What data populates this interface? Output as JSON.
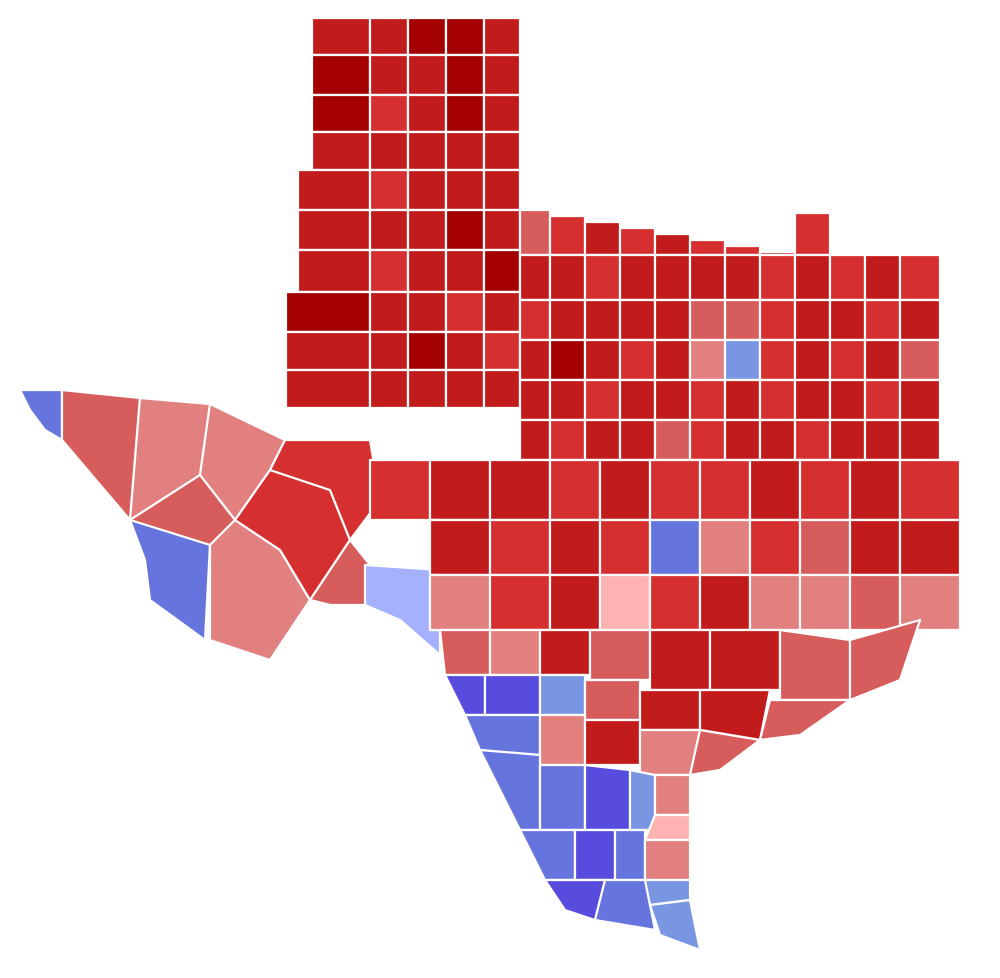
{
  "map": {
    "type": "choropleth",
    "region": "Texas counties",
    "colors": {
      "r_darkest": "#a50000",
      "r_dark": "#c21b1b",
      "r_mid": "#d62f2f",
      "r_light": "#d75d5d",
      "r_lighter": "#e27f7f",
      "r_lightest": "#ffb2b2",
      "d_lightest": "#a5b0ff",
      "d_light": "#7996e2",
      "d_mid": "#6674de",
      "d_dark": "#584cde"
    }
  }
}
